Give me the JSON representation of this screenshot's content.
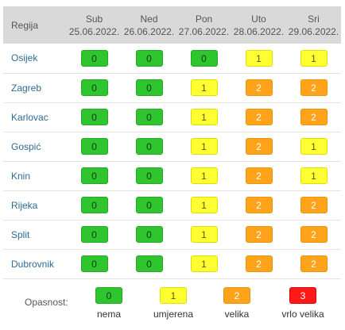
{
  "table": {
    "region_header": "Regija",
    "days": [
      {
        "day": "Sub",
        "date": "25.06.2022."
      },
      {
        "day": "Ned",
        "date": "26.06.2022."
      },
      {
        "day": "Pon",
        "date": "27.06.2022."
      },
      {
        "day": "Uto",
        "date": "28.06.2022."
      },
      {
        "day": "Sri",
        "date": "29.06.2022."
      }
    ],
    "rows": [
      {
        "region": "Osijek",
        "levels": [
          "0",
          "0",
          "0",
          "1",
          "1"
        ]
      },
      {
        "region": "Zagreb",
        "levels": [
          "0",
          "0",
          "1",
          "2",
          "2"
        ]
      },
      {
        "region": "Karlovac",
        "levels": [
          "0",
          "0",
          "1",
          "2",
          "2"
        ]
      },
      {
        "region": "Gospić",
        "levels": [
          "0",
          "0",
          "1",
          "2",
          "1"
        ]
      },
      {
        "region": "Knin",
        "levels": [
          "0",
          "0",
          "1",
          "2",
          "1"
        ]
      },
      {
        "region": "Rijeka",
        "levels": [
          "0",
          "0",
          "1",
          "2",
          "2"
        ]
      },
      {
        "region": "Split",
        "levels": [
          "0",
          "0",
          "1",
          "2",
          "2"
        ]
      },
      {
        "region": "Dubrovnik",
        "levels": [
          "0",
          "0",
          "1",
          "2",
          "2"
        ]
      }
    ]
  },
  "legend": {
    "label": "Opasnost:",
    "items": [
      {
        "value": "0",
        "caption": "nema",
        "color": "#2fc52f"
      },
      {
        "value": "1",
        "caption": "umjerena",
        "color": "#ffff33"
      },
      {
        "value": "2",
        "caption": "velika",
        "color": "#ffa31a"
      },
      {
        "value": "3",
        "caption": "vrlo velika",
        "color": "#ff1a1a"
      }
    ]
  }
}
